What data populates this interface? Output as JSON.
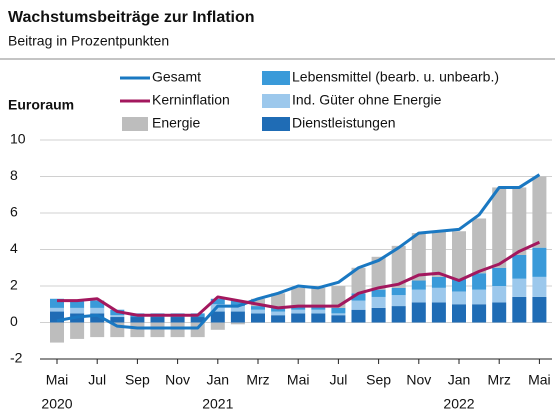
{
  "chart_data": {
    "type": "bar",
    "title": "Wachstumsbeiträge zur Inflation",
    "subtitle": "Beitrag in Prozentpunkten",
    "annotation": "Euroraum",
    "categories": [
      "Mai",
      null,
      "Jul",
      null,
      "Sep",
      null,
      "Nov",
      null,
      "Jan",
      null,
      "Mrz",
      null,
      "Mai",
      null,
      "Jul",
      null,
      "Sep",
      null,
      "Nov",
      null,
      "Jan",
      null,
      "Mrz",
      null,
      "Mai"
    ],
    "years": [
      "2020",
      null,
      null,
      null,
      null,
      null,
      null,
      null,
      "2021",
      null,
      null,
      null,
      null,
      null,
      null,
      null,
      null,
      null,
      null,
      null,
      "2022",
      null,
      null,
      null,
      null
    ],
    "ylim": [
      -2,
      10
    ],
    "yticks": [
      -2,
      0,
      2,
      4,
      6,
      8,
      10
    ],
    "grid": true,
    "series": [
      {
        "name": "Gesamt",
        "type": "line",
        "color": "#1a78c2",
        "values": [
          0.1,
          0.3,
          0.4,
          -0.2,
          -0.3,
          -0.3,
          -0.3,
          -0.3,
          0.9,
          0.9,
          1.3,
          1.6,
          2.0,
          1.9,
          2.2,
          3.0,
          3.4,
          4.1,
          4.9,
          5.0,
          5.1,
          5.9,
          7.4,
          7.4,
          8.1
        ]
      },
      {
        "name": "Kerninflation",
        "type": "line",
        "color": "#a3185e",
        "values": [
          1.2,
          1.2,
          1.3,
          0.6,
          0.4,
          0.4,
          0.4,
          0.4,
          1.4,
          1.2,
          1.0,
          0.8,
          0.9,
          0.9,
          0.9,
          1.6,
          1.9,
          2.1,
          2.6,
          2.7,
          2.3,
          2.8,
          3.2,
          3.9,
          4.4
        ]
      },
      {
        "name": "Energie",
        "type": "bar",
        "color": "#bdbdbd",
        "values": [
          -1.1,
          -0.9,
          -0.8,
          -0.8,
          -0.8,
          -0.8,
          -0.8,
          -0.8,
          -0.4,
          -0.1,
          0.4,
          0.8,
          1.0,
          1.0,
          1.2,
          1.4,
          1.8,
          2.3,
          2.6,
          2.5,
          2.6,
          3.0,
          4.4,
          3.7,
          3.9
        ]
      },
      {
        "name": "Lebensmittel (bearb. u. unbearb.)",
        "type": "bar",
        "color": "#3a9ad9",
        "values": [
          0.5,
          0.4,
          0.4,
          0.3,
          0.2,
          0.2,
          0.2,
          0.2,
          0.3,
          0.3,
          0.2,
          0.2,
          0.2,
          0.2,
          0.3,
          0.4,
          0.4,
          0.4,
          0.5,
          0.6,
          0.7,
          0.9,
          1.0,
          1.3,
          1.6
        ]
      },
      {
        "name": "Ind. Güter ohne Energie",
        "type": "bar",
        "color": "#9cc8ec",
        "values": [
          0.2,
          0.3,
          0.3,
          0.1,
          0.0,
          0.0,
          0.0,
          0.0,
          0.4,
          0.3,
          0.2,
          0.2,
          0.2,
          0.2,
          0.1,
          0.5,
          0.6,
          0.6,
          0.7,
          0.8,
          0.7,
          0.8,
          0.9,
          1.0,
          1.1
        ]
      },
      {
        "name": "Dienstleistungen",
        "type": "bar",
        "color": "#1f6cb5",
        "values": [
          0.6,
          0.5,
          0.5,
          0.3,
          0.3,
          0.3,
          0.3,
          0.3,
          0.6,
          0.6,
          0.5,
          0.4,
          0.5,
          0.5,
          0.4,
          0.7,
          0.8,
          0.9,
          1.1,
          1.1,
          1.0,
          1.0,
          1.1,
          1.4,
          1.4
        ]
      }
    ]
  }
}
